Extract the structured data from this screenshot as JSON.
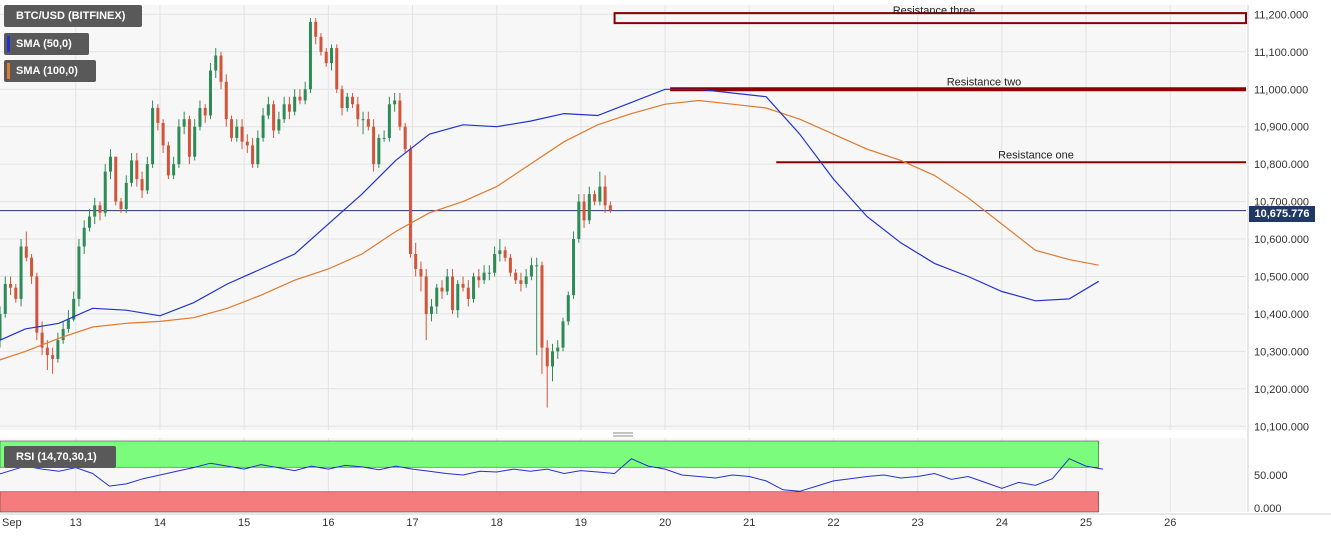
{
  "title": "BTC/USD (BITFINEX)",
  "indicators": {
    "sma50": {
      "label": "SMA (50,0)",
      "color": "#2233cc"
    },
    "sma100": {
      "label": "SMA (100,0)",
      "color": "#e07a2e"
    },
    "rsi": {
      "label": "RSI (14,70,30,1)",
      "color": "#2233cc",
      "overbought": 70,
      "oversold": 30
    }
  },
  "last_price": {
    "value": 10675.776,
    "label": "10,675.776"
  },
  "colors": {
    "up": "#2e8b57",
    "down": "#d1553b",
    "resistance": "#8b0000",
    "rsi_upper_zone": "#7cfc7c",
    "rsi_lower_zone": "#f47c7c",
    "price_line": "#1f3864"
  },
  "chart_data": [
    {
      "type": "candlestick",
      "title": "BTC/USD (BITFINEX)",
      "x_tick_labels": [
        "Sep",
        "13",
        "14",
        "15",
        "16",
        "17",
        "18",
        "19",
        "20",
        "21",
        "22",
        "23",
        "24",
        "25",
        "26"
      ],
      "x_tick_days": [
        12,
        13,
        14,
        15,
        16,
        17,
        18,
        19,
        20,
        21,
        22,
        23,
        24,
        25,
        26
      ],
      "xlim": [
        12.1,
        26.9
      ],
      "ylim": [
        10090,
        11225
      ],
      "y_ticks": [
        10100,
        10200,
        10300,
        10400,
        10500,
        10600,
        10700,
        10800,
        10900,
        11000,
        11100,
        11200
      ],
      "y_tick_labels": [
        "10,100.000",
        "10,200.000",
        "10,300.000",
        "10,400.000",
        "10,500.000",
        "10,600.000",
        "10,700.000",
        "10,800.000",
        "10,900.000",
        "11,000.000",
        "11,100.000",
        "11,200.000"
      ],
      "grid": true,
      "candles": {
        "t_start": 12.1,
        "t_step": 0.0625,
        "open": [
          10330,
          10400,
          10480,
          10470,
          10440,
          10580,
          10550,
          10500,
          10350,
          10310,
          10290,
          10280,
          10330,
          10360,
          10385,
          10440,
          10580,
          10630,
          10660,
          10690,
          10670,
          10780,
          10820,
          10700,
          10680,
          10750,
          10810,
          10760,
          10730,
          10800,
          10950,
          10910,
          10850,
          10770,
          10800,
          10900,
          10920,
          10820,
          10900,
          10950,
          10930,
          11050,
          11090,
          11020,
          10920,
          10870,
          10900,
          10860,
          10850,
          10800,
          10870,
          10930,
          10960,
          10890,
          10920,
          10960,
          10940,
          10980,
          10970,
          11000,
          11180,
          11140,
          11100,
          11070,
          11110,
          11000,
          10950,
          10980,
          10960,
          10920,
          10920,
          10900,
          10800,
          10870,
          10870,
          10960,
          10970,
          10900,
          10840,
          10560,
          10520,
          10500,
          10400,
          10420,
          10470,
          10460,
          10500,
          10410,
          10480,
          10470,
          10440,
          10500,
          10490,
          10510,
          10510,
          10560,
          10570,
          10550,
          10510,
          10490,
          10480,
          10500,
          10530,
          10530,
          10310,
          10260,
          10300,
          10310,
          10380,
          10450,
          10600,
          10700,
          10650,
          10720,
          10700,
          10740,
          10690
        ],
        "close": [
          10400,
          10480,
          10470,
          10440,
          10580,
          10550,
          10500,
          10350,
          10310,
          10290,
          10280,
          10330,
          10360,
          10385,
          10440,
          10580,
          10630,
          10660,
          10690,
          10670,
          10780,
          10820,
          10700,
          10680,
          10750,
          10810,
          10760,
          10730,
          10800,
          10950,
          10910,
          10850,
          10770,
          10800,
          10900,
          10920,
          10820,
          10900,
          10950,
          10930,
          11050,
          11090,
          11020,
          10920,
          10870,
          10900,
          10860,
          10850,
          10800,
          10870,
          10930,
          10960,
          10890,
          10920,
          10960,
          10940,
          10980,
          10970,
          11000,
          11180,
          11140,
          11100,
          11070,
          11110,
          11000,
          10950,
          10980,
          10960,
          10920,
          10920,
          10900,
          10800,
          10870,
          10870,
          10960,
          10970,
          10900,
          10840,
          10560,
          10520,
          10500,
          10400,
          10420,
          10470,
          10460,
          10500,
          10410,
          10480,
          10470,
          10440,
          10500,
          10490,
          10510,
          10510,
          10560,
          10570,
          10550,
          10510,
          10490,
          10480,
          10500,
          10530,
          10530,
          10310,
          10260,
          10300,
          10310,
          10380,
          10450,
          10600,
          10700,
          10650,
          10720,
          10700,
          10740,
          10690,
          10676
        ],
        "high": [
          10420,
          10500,
          10500,
          10480,
          10600,
          10620,
          10560,
          10510,
          10380,
          10330,
          10310,
          10350,
          10380,
          10410,
          10460,
          10600,
          10650,
          10680,
          10710,
          10700,
          10800,
          10840,
          10820,
          10710,
          10770,
          10830,
          10830,
          10780,
          10820,
          10970,
          10960,
          10920,
          10860,
          10820,
          10920,
          10940,
          10930,
          10920,
          10970,
          10960,
          11070,
          11110,
          11100,
          11040,
          10930,
          10920,
          10920,
          10880,
          10870,
          10890,
          10950,
          10980,
          10970,
          10940,
          10980,
          10980,
          11000,
          11000,
          11020,
          11190,
          11190,
          11150,
          11110,
          11120,
          11120,
          11010,
          10990,
          10990,
          10980,
          10940,
          10940,
          10920,
          10880,
          10890,
          10980,
          10990,
          10990,
          10910,
          10850,
          10590,
          10540,
          10520,
          10440,
          10480,
          10490,
          10520,
          10520,
          10490,
          10500,
          10490,
          10510,
          10520,
          10530,
          10530,
          10580,
          10600,
          10580,
          10560,
          10520,
          10510,
          10520,
          10550,
          10550,
          10540,
          10330,
          10320,
          10330,
          10390,
          10460,
          10620,
          10720,
          10720,
          10740,
          10730,
          10780,
          10770,
          10700
        ],
        "low": [
          10310,
          10390,
          10450,
          10430,
          10420,
          10540,
          10480,
          10330,
          10290,
          10250,
          10240,
          10270,
          10320,
          10350,
          10380,
          10420,
          10560,
          10620,
          10640,
          10650,
          10660,
          10760,
          10690,
          10670,
          10670,
          10740,
          10740,
          10710,
          10720,
          10790,
          10890,
          10830,
          10760,
          10760,
          10790,
          10880,
          10800,
          10810,
          10890,
          10910,
          10920,
          11030,
          11000,
          10900,
          10860,
          10860,
          10840,
          10830,
          10790,
          10790,
          10860,
          10920,
          10870,
          10880,
          10910,
          10920,
          10930,
          10960,
          10960,
          10990,
          11120,
          11090,
          11060,
          11050,
          10990,
          10930,
          10940,
          10950,
          10900,
          10880,
          10890,
          10780,
          10790,
          10860,
          10860,
          10940,
          10890,
          10830,
          10550,
          10500,
          10460,
          10330,
          10380,
          10400,
          10440,
          10450,
          10400,
          10390,
          10460,
          10420,
          10430,
          10470,
          10480,
          10490,
          10500,
          10540,
          10540,
          10500,
          10480,
          10460,
          10470,
          10490,
          10290,
          10240,
          10150,
          10220,
          10280,
          10300,
          10370,
          10440,
          10590,
          10630,
          10640,
          10690,
          10690,
          10670,
          10670
        ]
      },
      "sma50": {
        "x": [
          12.0,
          12.4,
          12.8,
          13.2,
          13.6,
          14.0,
          14.4,
          14.8,
          15.2,
          15.6,
          16.0,
          16.4,
          16.8,
          17.2,
          17.6,
          18.0,
          18.4,
          18.8,
          19.2,
          19.6,
          20.0,
          20.4,
          20.8,
          21.2,
          21.6,
          22.0,
          22.4,
          22.8,
          23.2,
          23.6,
          24.0,
          24.4,
          24.8,
          25.15
        ],
        "y": [
          10320,
          10360,
          10375,
          10415,
          10410,
          10395,
          10430,
          10480,
          10520,
          10560,
          10640,
          10720,
          10810,
          10880,
          10905,
          10900,
          10915,
          10935,
          10930,
          10965,
          11000,
          11000,
          10990,
          10980,
          10880,
          10760,
          10660,
          10590,
          10535,
          10500,
          10460,
          10435,
          10440,
          10487
        ]
      },
      "sma100": {
        "x": [
          12.0,
          12.4,
          12.8,
          13.2,
          13.6,
          14.0,
          14.4,
          14.8,
          15.2,
          15.6,
          16.0,
          16.4,
          16.8,
          17.2,
          17.6,
          18.0,
          18.4,
          18.8,
          19.2,
          19.6,
          20.0,
          20.4,
          20.8,
          21.2,
          21.6,
          22.0,
          22.4,
          22.8,
          23.2,
          23.6,
          24.0,
          24.4,
          24.8,
          25.15
        ],
        "y": [
          10270,
          10300,
          10335,
          10365,
          10375,
          10380,
          10390,
          10415,
          10450,
          10490,
          10520,
          10560,
          10620,
          10670,
          10700,
          10740,
          10800,
          10860,
          10905,
          10935,
          10960,
          10970,
          10960,
          10950,
          10920,
          10880,
          10840,
          10810,
          10770,
          10710,
          10640,
          10570,
          10545,
          10530
        ]
      },
      "resistances": [
        {
          "label": "Resistance three",
          "value": 11190,
          "x_start": 19.4,
          "thick": false
        },
        {
          "label": "Resistance two",
          "value": 11000,
          "x_start": 20.06,
          "thick": true
        },
        {
          "label": "Resistance one",
          "value": 10805,
          "x_start": 21.32,
          "thick": false
        }
      ]
    },
    {
      "type": "line",
      "title": "RSI (14,70,30,1)",
      "ylim": [
        0,
        100
      ],
      "y_ticks": [
        0,
        50
      ],
      "y_tick_labels": [
        "0.000",
        "50.000"
      ],
      "overbought": 70,
      "oversold": 30,
      "series": [
        {
          "name": "RSI (14,70,30,1)",
          "x": [
            12.0,
            12.2,
            12.4,
            12.6,
            12.8,
            13.0,
            13.2,
            13.4,
            13.6,
            13.8,
            14.0,
            14.2,
            14.4,
            14.6,
            14.8,
            15.0,
            15.2,
            15.4,
            15.6,
            15.8,
            16.0,
            16.2,
            16.4,
            16.6,
            16.8,
            17.0,
            17.2,
            17.4,
            17.6,
            17.8,
            18.0,
            18.2,
            18.4,
            18.6,
            18.8,
            19.0,
            19.2,
            19.4,
            19.6,
            19.8,
            20.0,
            20.2,
            20.4,
            20.6,
            20.8,
            21.0,
            21.2,
            21.4,
            21.6,
            21.8,
            22.0,
            22.2,
            22.4,
            22.6,
            22.8,
            23.0,
            23.2,
            23.4,
            23.6,
            23.8,
            24.0,
            24.2,
            24.4,
            24.6,
            24.8,
            25.0,
            25.2
          ],
          "y": [
            48,
            55,
            62,
            58,
            55,
            60,
            52,
            35,
            38,
            45,
            50,
            55,
            60,
            66,
            62,
            58,
            64,
            60,
            56,
            62,
            58,
            63,
            61,
            57,
            62,
            58,
            55,
            52,
            50,
            55,
            54,
            58,
            55,
            58,
            52,
            56,
            54,
            52,
            72,
            62,
            58,
            50,
            48,
            46,
            50,
            48,
            42,
            30,
            28,
            35,
            42,
            45,
            48,
            50,
            46,
            48,
            52,
            44,
            48,
            40,
            32,
            40,
            36,
            45,
            72,
            62,
            58
          ]
        }
      ]
    }
  ]
}
